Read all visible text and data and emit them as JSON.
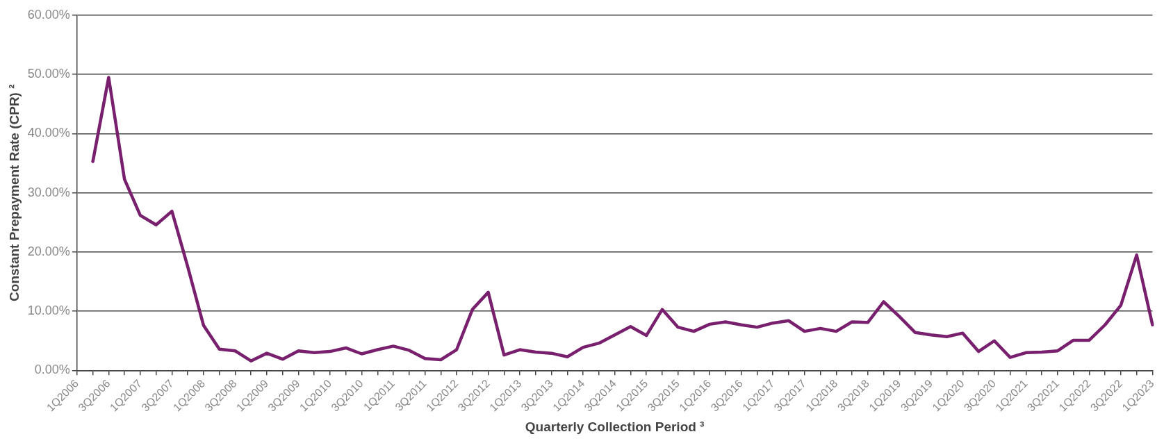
{
  "chart_data": {
    "type": "line",
    "xlabel": "Quarterly Collection Period ³",
    "ylabel": "Constant Prepayment Rate (CPR) ²",
    "categories": [
      "1Q2006",
      null,
      "3Q2006",
      null,
      "1Q2007",
      null,
      "3Q2007",
      null,
      "1Q2008",
      null,
      "3Q2008",
      null,
      "1Q2009",
      null,
      "3Q2009",
      null,
      "1Q2010",
      null,
      "3Q2010",
      null,
      "1Q2011",
      null,
      "3Q2011",
      null,
      "1Q2012",
      null,
      "3Q2012",
      null,
      "1Q2013",
      null,
      "3Q2013",
      null,
      "1Q2014",
      null,
      "3Q2014",
      null,
      "1Q2015",
      null,
      "3Q2015",
      null,
      "1Q2016",
      null,
      "3Q2016",
      null,
      "1Q2017",
      null,
      "3Q2017",
      null,
      "1Q2018",
      null,
      "3Q2018",
      null,
      "1Q2019",
      null,
      "3Q2019",
      null,
      "1Q2020",
      null,
      "3Q2020",
      null,
      "1Q2021",
      null,
      "3Q2021",
      null,
      "1Q2022",
      null,
      "3Q2022",
      null,
      "1Q2023"
    ],
    "series": [
      {
        "color": "#78206e",
        "values": [
          null,
          35.3,
          49.5,
          32.3,
          26.2,
          24.6,
          26.9,
          17.5,
          7.6,
          3.6,
          3.3,
          1.6,
          2.9,
          1.9,
          3.3,
          3.0,
          3.2,
          3.8,
          2.8,
          3.5,
          4.1,
          3.4,
          2.0,
          1.8,
          3.5,
          10.3,
          13.2,
          2.6,
          3.5,
          3.1,
          2.9,
          2.3,
          3.9,
          4.6,
          6.0,
          7.4,
          5.9,
          10.3,
          7.3,
          6.6,
          7.8,
          8.2,
          7.7,
          7.3,
          8.0,
          8.4,
          6.6,
          7.1,
          6.6,
          8.2,
          8.1,
          11.6,
          9.1,
          6.4,
          6.0,
          5.7,
          6.3,
          3.2,
          5.0,
          2.2,
          3.0,
          3.1,
          3.3,
          5.1,
          5.1,
          7.7,
          11.0,
          19.5,
          7.7
        ]
      }
    ],
    "ylim": [
      0,
      60
    ],
    "yticks": [
      {
        "value": 0,
        "label": "0.00%"
      },
      {
        "value": 10,
        "label": "10.00%"
      },
      {
        "value": 20,
        "label": "20.00%"
      },
      {
        "value": 30,
        "label": "30.00%"
      },
      {
        "value": 40,
        "label": "40.00%"
      },
      {
        "value": 50,
        "label": "50.00%"
      },
      {
        "value": 60,
        "label": "60.00%"
      }
    ],
    "grid": "y",
    "legend": false,
    "marker": "none",
    "line_style": "solid"
  }
}
